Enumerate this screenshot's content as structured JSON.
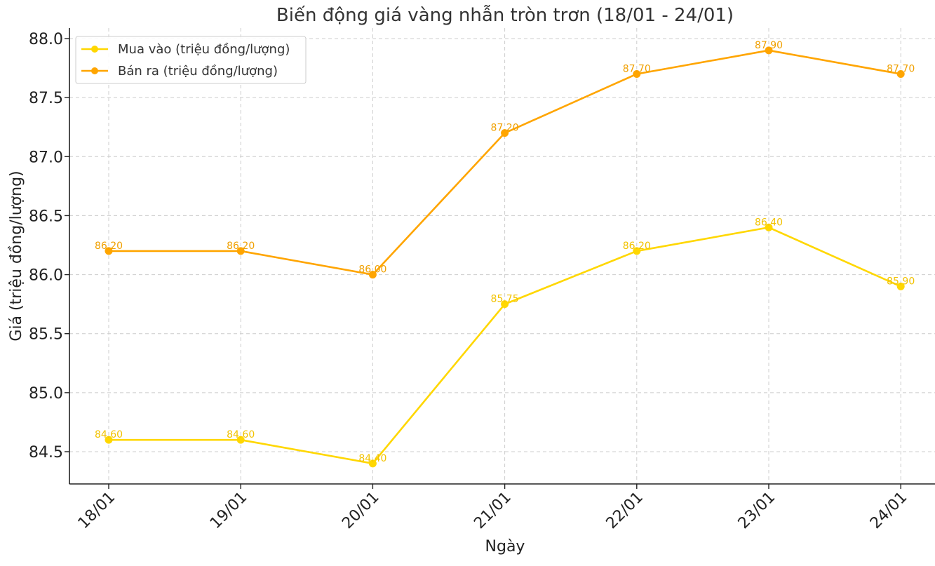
{
  "chart_data": {
    "type": "line",
    "title": "Biến động giá vàng nhẫn tròn trơn (18/01 - 24/01)",
    "xlabel": "Ngày",
    "ylabel": "Giá (triệu đồng/lượng)",
    "categories": [
      "18/01",
      "19/01",
      "20/01",
      "21/01",
      "22/01",
      "23/01",
      "24/01"
    ],
    "ylim": [
      84.23,
      88.1
    ],
    "yticks": [
      84.5,
      85.0,
      85.5,
      86.0,
      86.5,
      87.0,
      87.5,
      88.0
    ],
    "ytick_labels": [
      "84.5",
      "85.0",
      "85.5",
      "86.0",
      "86.5",
      "87.0",
      "87.5",
      "88.0"
    ],
    "grid": true,
    "legend_position": "top-left",
    "series": [
      {
        "name": "Mua vào (triệu đồng/lượng)",
        "color": "#FFD700",
        "label_color": "#F2C200",
        "values": [
          84.6,
          84.6,
          84.4,
          85.75,
          86.2,
          86.4,
          85.9
        ],
        "labels": [
          "84.60",
          "84.60",
          "84.40",
          "85.75",
          "86.20",
          "86.40",
          "85.90"
        ]
      },
      {
        "name": "Bán ra (triệu đồng/lượng)",
        "color": "#FFA500",
        "label_color": "#F0A000",
        "values": [
          86.2,
          86.2,
          86.0,
          87.2,
          87.7,
          87.9,
          87.7
        ],
        "labels": [
          "86.20",
          "86.20",
          "86.00",
          "87.20",
          "87.70",
          "87.90",
          "87.70"
        ]
      }
    ]
  }
}
